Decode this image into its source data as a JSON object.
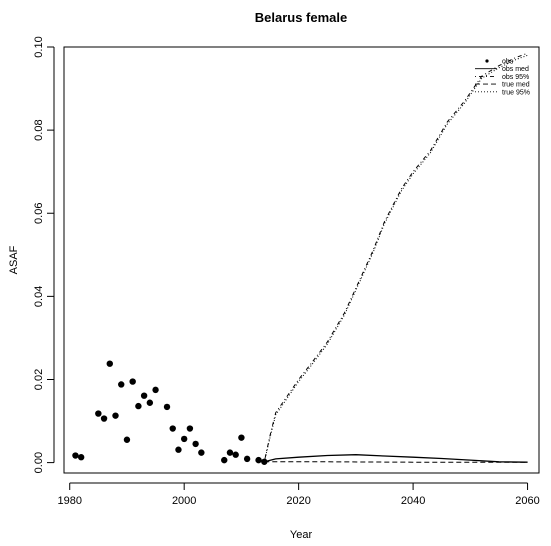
{
  "chart_data": {
    "type": "scatter",
    "title": "Belarus female",
    "xlabel": "Year",
    "ylabel": "ASAF",
    "xlim": [
      1979,
      2062
    ],
    "ylim": [
      -0.0025,
      0.1
    ],
    "xticks": [
      "1980",
      "2000",
      "2020",
      "2040",
      "2060"
    ],
    "yticks": [
      "0.00",
      "0.02",
      "0.04",
      "0.06",
      "0.08",
      "0.10"
    ],
    "legend_position": "top-right",
    "legend": [
      {
        "label": "obs",
        "style": "point"
      },
      {
        "label": "obs med",
        "style": "solid"
      },
      {
        "label": "obs 95%",
        "style": "dotdash"
      },
      {
        "label": "true med",
        "style": "dashed"
      },
      {
        "label": "true 95%",
        "style": "dotted"
      }
    ],
    "series": [
      {
        "name": "obs",
        "points": [
          [
            1981,
            0.0017
          ],
          [
            1982,
            0.0013
          ],
          [
            1985,
            0.0118
          ],
          [
            1986,
            0.0106
          ],
          [
            1987,
            0.0238
          ],
          [
            1988,
            0.0113
          ],
          [
            1989,
            0.0188
          ],
          [
            1990,
            0.0055
          ],
          [
            1991,
            0.0195
          ],
          [
            1992,
            0.0136
          ],
          [
            1993,
            0.0161
          ],
          [
            1994,
            0.0144
          ],
          [
            1995,
            0.0175
          ],
          [
            1997,
            0.0134
          ],
          [
            1998,
            0.0082
          ],
          [
            1999,
            0.0031
          ],
          [
            2000,
            0.0057
          ],
          [
            2001,
            0.0082
          ],
          [
            2002,
            0.0045
          ],
          [
            2003,
            0.0024
          ],
          [
            2007,
            0.0006
          ],
          [
            2008,
            0.0024
          ],
          [
            2009,
            0.0019
          ],
          [
            2010,
            0.006
          ],
          [
            2011,
            0.0009
          ],
          [
            2013,
            0.0006
          ],
          [
            2014,
            0.0002
          ]
        ]
      },
      {
        "name": "obs med",
        "points": [
          [
            2014,
            0.0002
          ],
          [
            2016,
            0.0009
          ],
          [
            2020,
            0.0013
          ],
          [
            2025,
            0.0017
          ],
          [
            2030,
            0.0019
          ],
          [
            2035,
            0.0016
          ],
          [
            2040,
            0.0013
          ],
          [
            2045,
            0.001
          ],
          [
            2050,
            0.0006
          ],
          [
            2055,
            0.0002
          ],
          [
            2060,
            0.0001
          ]
        ]
      },
      {
        "name": "obs 95%",
        "points": [
          [
            2014,
            0.0002
          ],
          [
            2015,
            0.0065
          ],
          [
            2016,
            0.012
          ],
          [
            2018,
            0.016
          ],
          [
            2020,
            0.02
          ],
          [
            2022,
            0.0235
          ],
          [
            2025,
            0.029
          ],
          [
            2028,
            0.036
          ],
          [
            2030,
            0.042
          ],
          [
            2033,
            0.051
          ],
          [
            2035,
            0.058
          ],
          [
            2038,
            0.066
          ],
          [
            2040,
            0.07
          ],
          [
            2043,
            0.075
          ],
          [
            2046,
            0.082
          ],
          [
            2049,
            0.087
          ],
          [
            2052,
            0.093
          ],
          [
            2055,
            0.0955
          ],
          [
            2058,
            0.0975
          ],
          [
            2060,
            0.0985
          ]
        ]
      },
      {
        "name": "true med",
        "points": [
          [
            2014,
            0.0002
          ],
          [
            2025,
            0.0002
          ],
          [
            2040,
            0.0001
          ],
          [
            2060,
            0.0001
          ]
        ]
      },
      {
        "name": "true 95%",
        "points": [
          [
            2014,
            0.0002
          ],
          [
            2015,
            0.006
          ],
          [
            2016,
            0.0115
          ],
          [
            2018,
            0.0155
          ],
          [
            2020,
            0.0195
          ],
          [
            2022,
            0.023
          ],
          [
            2025,
            0.0285
          ],
          [
            2028,
            0.0355
          ],
          [
            2030,
            0.0415
          ],
          [
            2033,
            0.0505
          ],
          [
            2035,
            0.0575
          ],
          [
            2038,
            0.0655
          ],
          [
            2040,
            0.0695
          ],
          [
            2043,
            0.0745
          ],
          [
            2046,
            0.0815
          ],
          [
            2049,
            0.0865
          ],
          [
            2052,
            0.0925
          ],
          [
            2055,
            0.095
          ],
          [
            2058,
            0.097
          ],
          [
            2060,
            0.098
          ]
        ]
      }
    ]
  }
}
